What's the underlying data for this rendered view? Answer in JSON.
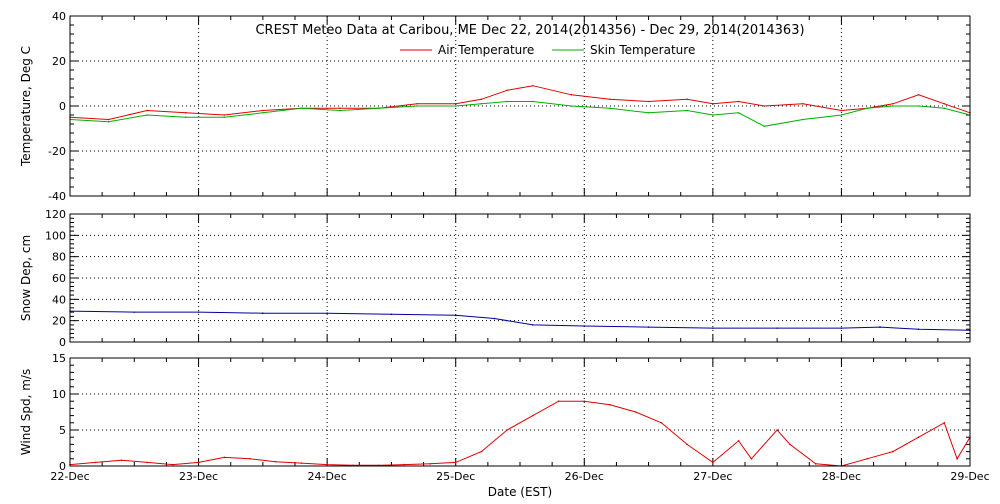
{
  "title": "CREST Meteo Data at Caribou, ME   Dec 22, 2014(2014356) - Dec 29, 2014(2014363)",
  "legend": [
    {
      "label": "Air Temperature",
      "color": "#e00000"
    },
    {
      "label": "Skin Temperature",
      "color": "#00b000"
    }
  ],
  "colors": {
    "air": "#e00000",
    "skin": "#00b000",
    "snow": "#0000a0",
    "wind": "#e00000",
    "axis": "#000000"
  },
  "x_axis": {
    "label": "Date (EST)",
    "ticks": [
      "22-Dec",
      "23-Dec",
      "24-Dec",
      "25-Dec",
      "26-Dec",
      "27-Dec",
      "28-Dec",
      "29-Dec"
    ]
  },
  "chart_data": [
    {
      "type": "line",
      "panel": "temperature",
      "ylabel": "Temperature, Deg C",
      "ylim": [
        -40,
        40
      ],
      "yticks": [
        -40,
        -20,
        0,
        20,
        40
      ],
      "xlim": [
        0,
        7
      ],
      "grid": true,
      "legend_position": "top-center",
      "series": [
        {
          "name": "Air Temperature",
          "color": "#e00000",
          "x": [
            0,
            0.3,
            0.6,
            0.9,
            1.2,
            1.5,
            1.8,
            2.1,
            2.4,
            2.7,
            3.0,
            3.2,
            3.4,
            3.6,
            3.9,
            4.2,
            4.5,
            4.8,
            5.0,
            5.2,
            5.4,
            5.7,
            6.0,
            6.2,
            6.4,
            6.6,
            6.8,
            7.0
          ],
          "y": [
            -5,
            -6,
            -2,
            -3,
            -4,
            -2,
            -1,
            -1,
            -1,
            1,
            1,
            3,
            7,
            9,
            5,
            3,
            2,
            3,
            1,
            2,
            0,
            1,
            -2,
            -1,
            1,
            5,
            1,
            -3
          ]
        },
        {
          "name": "Skin Temperature",
          "color": "#00b000",
          "x": [
            0,
            0.3,
            0.6,
            0.9,
            1.2,
            1.5,
            1.8,
            2.1,
            2.4,
            2.7,
            3.0,
            3.2,
            3.4,
            3.6,
            3.9,
            4.2,
            4.5,
            4.8,
            5.0,
            5.2,
            5.4,
            5.7,
            6.0,
            6.2,
            6.4,
            6.6,
            6.8,
            7.0
          ],
          "y": [
            -6,
            -7,
            -4,
            -5,
            -5,
            -3,
            -1,
            -2,
            -1,
            0,
            0,
            1,
            2,
            2,
            0,
            -1,
            -3,
            -2,
            -4,
            -3,
            -9,
            -6,
            -4,
            -1,
            0,
            0,
            -1,
            -4
          ]
        }
      ]
    },
    {
      "type": "line",
      "panel": "snow",
      "ylabel": "Snow Dep, cm",
      "ylim": [
        0,
        120
      ],
      "yticks": [
        0,
        20,
        40,
        60,
        80,
        100,
        120
      ],
      "xlim": [
        0,
        7
      ],
      "grid": true,
      "series": [
        {
          "name": "",
          "color": "#0000a0",
          "x": [
            0,
            0.5,
            1.0,
            1.5,
            2.0,
            2.5,
            3.0,
            3.3,
            3.6,
            4.0,
            4.5,
            5.0,
            5.5,
            6.0,
            6.3,
            6.6,
            7.0
          ],
          "y": [
            29,
            28,
            28,
            27,
            27,
            26,
            25,
            22,
            16,
            15,
            14,
            13,
            13,
            13,
            14,
            12,
            11
          ]
        }
      ]
    },
    {
      "type": "line",
      "panel": "wind",
      "ylabel": "Wind Spd, m/s",
      "ylim": [
        0,
        15
      ],
      "yticks": [
        0,
        5,
        10,
        15
      ],
      "xlim": [
        0,
        7
      ],
      "grid": true,
      "series": [
        {
          "name": "",
          "color": "#e00000",
          "x": [
            0,
            0.2,
            0.4,
            0.6,
            0.8,
            1.0,
            1.2,
            1.4,
            1.6,
            1.8,
            2.0,
            2.2,
            2.4,
            2.6,
            2.8,
            3.0,
            3.2,
            3.4,
            3.6,
            3.8,
            4.0,
            4.2,
            4.4,
            4.6,
            4.8,
            5.0,
            5.2,
            5.3,
            5.5,
            5.6,
            5.8,
            6.0,
            6.2,
            6.4,
            6.6,
            6.8,
            6.9,
            7.0
          ],
          "y": [
            0.2,
            0.5,
            0.8,
            0.5,
            0.2,
            0.5,
            1.2,
            1.0,
            0.6,
            0.4,
            0.2,
            0.1,
            0.1,
            0.2,
            0.3,
            0.5,
            2,
            5,
            7,
            9,
            9,
            8.5,
            7.5,
            6,
            3,
            0.5,
            3.5,
            1,
            5,
            3,
            0.3,
            0,
            1,
            2,
            4,
            6,
            1,
            4
          ]
        }
      ]
    }
  ]
}
